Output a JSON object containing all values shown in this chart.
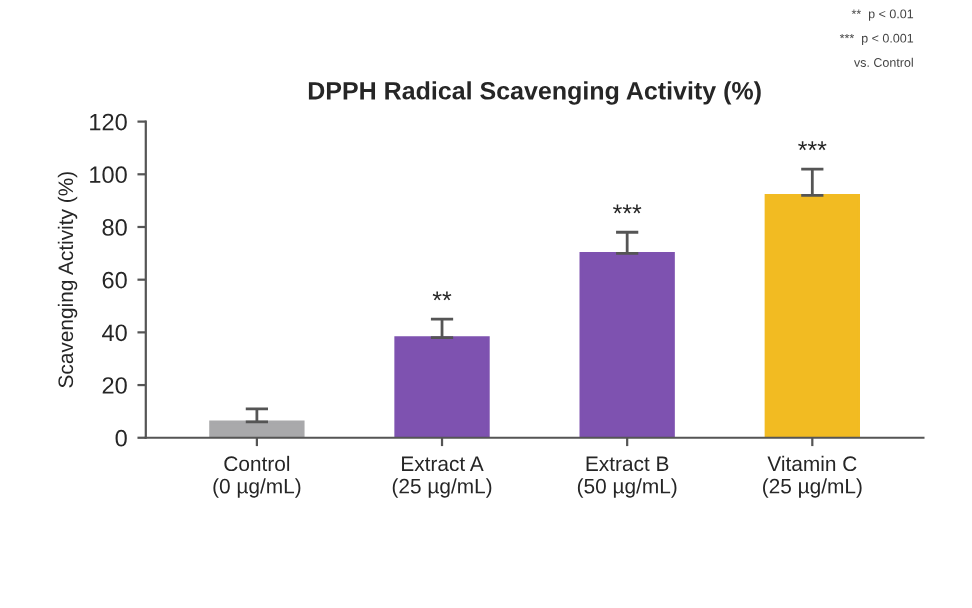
{
  "chart_data": {
    "type": "bar",
    "title": "DPPH Radical Scavenging Activity (%)",
    "ylabel": "Scavenging Activity (%)",
    "categories": [
      "Control\n(0 µg/mL)",
      "Extract A\n(25 µg/mL)",
      "Extract B\n(50 µg/mL)",
      "Vitamin C\n(25 µg/mL)"
    ],
    "values": [
      6,
      38,
      70,
      92
    ],
    "errors": [
      [
        6,
        11
      ],
      [
        38,
        45
      ],
      [
        70,
        78
      ],
      [
        92,
        102
      ]
    ],
    "colors": [
      "#a9a9ab",
      "#7e52b0",
      "#7e52b0",
      "#f2bb22"
    ],
    "ylim": [
      0,
      120
    ],
    "yticks": [
      0,
      20,
      40,
      60,
      80,
      100,
      120
    ],
    "grid": false,
    "annotations": [
      {
        "text": "**",
        "x": "Extract A\n(25 µg/mL)",
        "y": 47
      },
      {
        "text": "***",
        "x": "Extract B\n(50 µg/mL)",
        "y": 80
      },
      {
        "text": "***",
        "x": "Vitamin C\n(25 µg/mL)",
        "y": 104
      },
      "**  p < 0.01",
      "***  p < 0.001",
      "vs. Control"
    ]
  }
}
